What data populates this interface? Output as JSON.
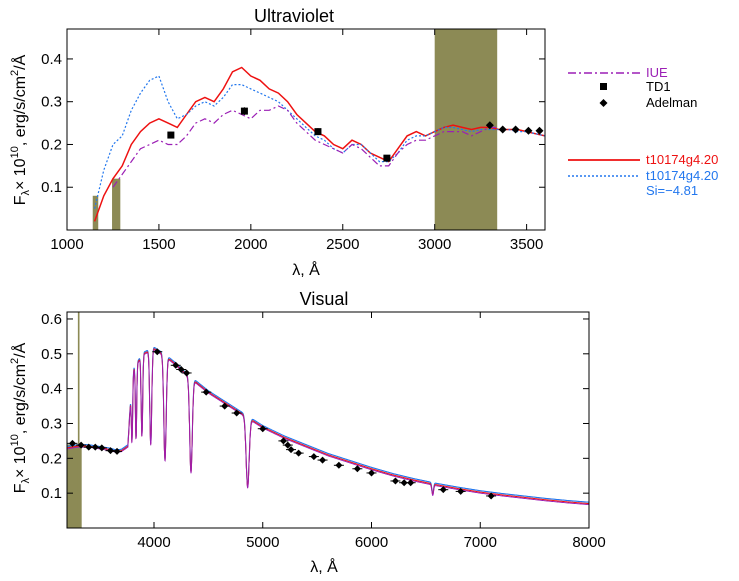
{
  "colors": {
    "iue": "#9b1fb5",
    "model_red": "#ee1111",
    "model_blue": "#2277ee",
    "fill": "#8c8a55",
    "marker": "#000000"
  },
  "chart_data": [
    {
      "type": "line",
      "title": "Ultraviolet",
      "xlabel": "λ, Å",
      "ylabel_parts": {
        "f": "F",
        "lambda_sub": "λ",
        "times": "× 10",
        "exp": "10",
        "units": ", erg/s/cm",
        "sq": "2",
        "per": "/Å"
      },
      "xlim": [
        1000,
        3600
      ],
      "ylim": [
        0,
        0.47
      ],
      "xticks": [
        1000,
        1500,
        2000,
        2500,
        3000,
        3500
      ],
      "xtick_labels": [
        "1000",
        "1500",
        "2000",
        "2500",
        "3000",
        "3500"
      ],
      "yticks": [
        0.1,
        0.2,
        0.3,
        0.4
      ],
      "ytick_labels": [
        "0.1",
        "0.2",
        "0.3",
        "0.4"
      ],
      "legend": {
        "placement": "right",
        "observed": [
          "IUE",
          "TD1",
          "Adelman"
        ],
        "models": [
          "t10174g4.20",
          "t10174g4.20"
        ],
        "model_note": "Si=−4.81"
      },
      "series": [
        {
          "name": "t10174g4.20",
          "style": "solid",
          "color": "#ee1111",
          "x": [
            1150,
            1200,
            1250,
            1300,
            1350,
            1400,
            1450,
            1500,
            1550,
            1600,
            1650,
            1700,
            1750,
            1800,
            1850,
            1900,
            1950,
            2000,
            2050,
            2100,
            2150,
            2200,
            2250,
            2300,
            2350,
            2400,
            2450,
            2500,
            2550,
            2600,
            2650,
            2700,
            2750,
            2800,
            2850,
            2900,
            2950,
            3000,
            3050,
            3100,
            3150,
            3200,
            3250,
            3300,
            3350,
            3400,
            3450,
            3500,
            3550,
            3600
          ],
          "y": [
            0.02,
            0.08,
            0.12,
            0.15,
            0.2,
            0.23,
            0.25,
            0.26,
            0.25,
            0.24,
            0.27,
            0.3,
            0.31,
            0.3,
            0.33,
            0.37,
            0.38,
            0.36,
            0.35,
            0.33,
            0.32,
            0.3,
            0.27,
            0.25,
            0.23,
            0.22,
            0.2,
            0.19,
            0.21,
            0.2,
            0.18,
            0.17,
            0.16,
            0.19,
            0.22,
            0.23,
            0.22,
            0.23,
            0.24,
            0.245,
            0.24,
            0.235,
            0.24,
            0.24,
            0.235,
            0.235,
            0.235,
            0.23,
            0.225,
            0.22
          ]
        },
        {
          "name": "t10174g4.20",
          "style": "dotted",
          "color": "#2277ee",
          "x": [
            1150,
            1200,
            1250,
            1300,
            1350,
            1400,
            1450,
            1500,
            1550,
            1600,
            1650,
            1700,
            1750,
            1800,
            1850,
            1900,
            1950,
            2000,
            2050,
            2100,
            2150,
            2200,
            2250,
            2300,
            2350,
            2400,
            2450,
            2500,
            2550,
            2600,
            2650,
            2700,
            2750,
            2800,
            2850,
            2900,
            2950,
            3000,
            3050,
            3100,
            3150,
            3200,
            3250,
            3300,
            3350,
            3400,
            3450,
            3500,
            3550,
            3600
          ],
          "y": [
            0.05,
            0.14,
            0.2,
            0.22,
            0.28,
            0.32,
            0.35,
            0.36,
            0.3,
            0.26,
            0.27,
            0.29,
            0.3,
            0.29,
            0.31,
            0.34,
            0.34,
            0.33,
            0.32,
            0.31,
            0.3,
            0.28,
            0.26,
            0.24,
            0.22,
            0.21,
            0.19,
            0.18,
            0.2,
            0.2,
            0.18,
            0.16,
            0.16,
            0.18,
            0.21,
            0.22,
            0.22,
            0.23,
            0.24,
            0.24,
            0.235,
            0.23,
            0.235,
            0.235,
            0.235,
            0.235,
            0.23,
            0.23,
            0.225,
            0.22
          ]
        },
        {
          "name": "IUE",
          "style": "dashdot",
          "color": "#9b1fb5",
          "x": [
            1250,
            1300,
            1350,
            1400,
            1450,
            1500,
            1550,
            1600,
            1650,
            1700,
            1750,
            1800,
            1850,
            1900,
            1950,
            2000,
            2050,
            2100,
            2150,
            2200,
            2250,
            2300,
            2350,
            2400,
            2450,
            2500,
            2550,
            2600,
            2650,
            2700,
            2750,
            2800,
            2850,
            2900,
            2950,
            3000,
            3050,
            3100,
            3150,
            3200,
            3250,
            3300,
            3350
          ],
          "y": [
            0.1,
            0.13,
            0.16,
            0.19,
            0.2,
            0.21,
            0.2,
            0.2,
            0.22,
            0.25,
            0.26,
            0.25,
            0.27,
            0.28,
            0.27,
            0.26,
            0.28,
            0.28,
            0.29,
            0.28,
            0.25,
            0.23,
            0.21,
            0.2,
            0.19,
            0.18,
            0.2,
            0.19,
            0.17,
            0.15,
            0.15,
            0.18,
            0.2,
            0.21,
            0.21,
            0.22,
            0.23,
            0.23,
            0.23,
            0.22,
            0.23,
            0.24,
            0.24
          ]
        }
      ],
      "td1": [
        {
          "x": 1565,
          "y": 0.222,
          "err": 0.008
        },
        {
          "x": 1965,
          "y": 0.278,
          "err": 0.009
        },
        {
          "x": 2365,
          "y": 0.23,
          "err": 0.008
        },
        {
          "x": 2740,
          "y": 0.168,
          "err": 0.007
        }
      ],
      "adelman": [
        {
          "x": 3300,
          "y": 0.245
        },
        {
          "x": 3370,
          "y": 0.235
        },
        {
          "x": 3440,
          "y": 0.235
        },
        {
          "x": 3510,
          "y": 0.232
        },
        {
          "x": 3570,
          "y": 0.232
        }
      ],
      "shaded_regions": [
        {
          "x": [
            1140,
            1170
          ],
          "ymax": 0.08
        },
        {
          "x": [
            1245,
            1290
          ],
          "ymax": 0.12
        },
        {
          "x": [
            3000,
            3340
          ],
          "ymax": 0.47
        }
      ]
    },
    {
      "type": "line",
      "title": "Visual",
      "xlabel": "λ, Å",
      "ylabel_parts": {
        "f": "F",
        "lambda_sub": "λ",
        "times": "× 10",
        "exp": "10",
        "units": ", erg/s/cm",
        "sq": "2",
        "per": "/Å"
      },
      "xlim": [
        3200,
        8000
      ],
      "ylim": [
        0,
        0.62
      ],
      "xticks": [
        4000,
        5000,
        6000,
        7000,
        8000
      ],
      "xtick_labels": [
        "4000",
        "5000",
        "6000",
        "7000",
        "8000"
      ],
      "yticks": [
        0.1,
        0.2,
        0.3,
        0.4,
        0.5,
        0.6
      ],
      "ytick_labels": [
        "0.1",
        "0.2",
        "0.3",
        "0.4",
        "0.5",
        "0.6"
      ],
      "continuum": {
        "x": [
          3200,
          3300,
          3400,
          3500,
          3600,
          3650,
          3700,
          3760,
          3800,
          3900,
          4000,
          4100,
          4200,
          4300,
          4400,
          4500,
          4600,
          4700,
          4800,
          4900,
          5000,
          5200,
          5400,
          5600,
          5800,
          6000,
          6200,
          6400,
          6600,
          6800,
          7000,
          7200,
          7400,
          7600,
          7800,
          8000
        ],
        "y": [
          0.23,
          0.235,
          0.235,
          0.23,
          0.225,
          0.22,
          0.222,
          0.235,
          0.45,
          0.5,
          0.515,
          0.495,
          0.47,
          0.44,
          0.415,
          0.39,
          0.37,
          0.35,
          0.33,
          0.31,
          0.29,
          0.26,
          0.235,
          0.21,
          0.19,
          0.17,
          0.152,
          0.137,
          0.124,
          0.113,
          0.103,
          0.095,
          0.088,
          0.081,
          0.075,
          0.07
        ]
      },
      "absorption_lines": [
        {
          "x": 3798,
          "depth": 0.19,
          "width": 6
        },
        {
          "x": 3835,
          "depth": 0.21,
          "width": 6
        },
        {
          "x": 3889,
          "depth": 0.23,
          "width": 7
        },
        {
          "x": 3970,
          "depth": 0.27,
          "width": 9
        },
        {
          "x": 4101,
          "depth": 0.3,
          "width": 11
        },
        {
          "x": 4340,
          "depth": 0.27,
          "width": 12
        },
        {
          "x": 4861,
          "depth": 0.2,
          "width": 14
        },
        {
          "x": 6563,
          "depth": 0.03,
          "width": 8
        }
      ],
      "adelman": [
        {
          "x": 3250,
          "y": 0.243
        },
        {
          "x": 3330,
          "y": 0.238
        },
        {
          "x": 3400,
          "y": 0.232
        },
        {
          "x": 3460,
          "y": 0.232
        },
        {
          "x": 3520,
          "y": 0.23
        },
        {
          "x": 3600,
          "y": 0.222
        },
        {
          "x": 3660,
          "y": 0.22
        },
        {
          "x": 4030,
          "y": 0.506
        },
        {
          "x": 4200,
          "y": 0.467
        },
        {
          "x": 4250,
          "y": 0.455
        },
        {
          "x": 4300,
          "y": 0.445
        },
        {
          "x": 4480,
          "y": 0.39
        },
        {
          "x": 4650,
          "y": 0.35
        },
        {
          "x": 4760,
          "y": 0.33
        },
        {
          "x": 5000,
          "y": 0.285
        },
        {
          "x": 5190,
          "y": 0.25
        },
        {
          "x": 5230,
          "y": 0.238
        },
        {
          "x": 5260,
          "y": 0.225
        },
        {
          "x": 5330,
          "y": 0.215
        },
        {
          "x": 5470,
          "y": 0.205
        },
        {
          "x": 5550,
          "y": 0.195
        },
        {
          "x": 5700,
          "y": 0.18
        },
        {
          "x": 5870,
          "y": 0.17
        },
        {
          "x": 6000,
          "y": 0.158
        },
        {
          "x": 6220,
          "y": 0.135
        },
        {
          "x": 6300,
          "y": 0.13
        },
        {
          "x": 6360,
          "y": 0.13
        },
        {
          "x": 6660,
          "y": 0.11
        },
        {
          "x": 6820,
          "y": 0.105
        },
        {
          "x": 7100,
          "y": 0.092
        }
      ],
      "shaded_regions": [
        {
          "x": [
            3200,
            3335
          ],
          "ymax": 0.24
        },
        {
          "x": [
            3300,
            3315
          ],
          "ymax": 0.62
        }
      ]
    }
  ]
}
